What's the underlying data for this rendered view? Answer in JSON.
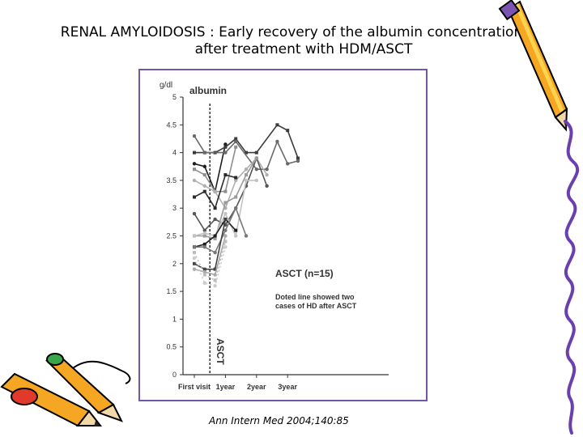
{
  "slide": {
    "title_line1": "RENAL AMYLOIDOSIS : Early recovery of the albumin concentration",
    "title_line2": "after treatment with HDM/ASCT",
    "citation": "Ann Intern Med 2004;140:85"
  },
  "chart_data": {
    "type": "line",
    "ylabel_unit": "g/dl",
    "panel_title": "albumin",
    "ylim": [
      0,
      5
    ],
    "yticks": [
      "0",
      "0.5",
      "1",
      "1.5",
      "2",
      "2.5",
      "3",
      "3.5",
      "4",
      "4.5",
      "5"
    ],
    "x_positions": [
      0,
      0.5,
      1,
      1.5,
      2,
      2.5,
      3,
      3.5,
      4,
      4.5,
      5
    ],
    "xtick_labels": [
      {
        "x": 0,
        "label": "First visit"
      },
      {
        "x": 1.5,
        "label": "1year"
      },
      {
        "x": 3,
        "label": "2year"
      },
      {
        "x": 4.5,
        "label": "3year"
      }
    ],
    "asct_marker_x": 0.75,
    "asct_label": "ASCT",
    "annotation_title": "ASCT (n=15)",
    "annotation_note_line1": "Doted line showed two",
    "annotation_note_line2": "cases of HD after ASCT",
    "grid": false,
    "legend": "none",
    "series_colors": [
      "#1e1e1e",
      "#3c3c3c",
      "#6a6a6a",
      "#8e8e8e",
      "#b0b0b0",
      "#2a2a2a",
      "#555555",
      "#9a9a9a",
      "#c2c2c2",
      "#1e1e1e",
      "#777777",
      "#444444",
      "#a8a8a8",
      "#bcbcbc",
      "#cccccc"
    ],
    "series": [
      {
        "dashed": false,
        "points": [
          [
            0,
            3.8
          ],
          [
            0.5,
            3.75
          ],
          [
            1,
            3.3
          ],
          [
            1.5,
            4.15
          ]
        ]
      },
      {
        "dashed": false,
        "points": [
          [
            0,
            4.0
          ],
          [
            0.5,
            4.0
          ],
          [
            1,
            4.0
          ],
          [
            1.5,
            4.1
          ],
          [
            2,
            4.25
          ],
          [
            2.5,
            4.0
          ],
          [
            3,
            4.0
          ],
          [
            4,
            4.5
          ],
          [
            4.5,
            4.4
          ],
          [
            5,
            3.9
          ]
        ]
      },
      {
        "dashed": false,
        "points": [
          [
            0,
            4.3
          ],
          [
            0.5,
            4.0
          ],
          [
            1.5,
            4.0
          ],
          [
            2,
            4.2
          ],
          [
            3,
            3.7
          ],
          [
            3.5,
            3.7
          ],
          [
            4,
            4.2
          ],
          [
            4.5,
            3.8
          ],
          [
            5,
            3.85
          ]
        ]
      },
      {
        "dashed": false,
        "points": [
          [
            0,
            3.7
          ],
          [
            0.5,
            3.6
          ],
          [
            1,
            3.3
          ],
          [
            1.5,
            3.3
          ],
          [
            2,
            4.1
          ]
        ]
      },
      {
        "dashed": false,
        "points": [
          [
            0,
            3.5
          ],
          [
            0.5,
            3.4
          ],
          [
            1,
            3.3
          ],
          [
            1.5,
            3.0
          ],
          [
            2,
            3.5
          ],
          [
            2.5,
            3.7
          ],
          [
            3,
            3.9
          ],
          [
            3.5,
            3.6
          ]
        ]
      },
      {
        "dashed": false,
        "points": [
          [
            0,
            3.2
          ],
          [
            0.5,
            3.3
          ],
          [
            1,
            3.0
          ],
          [
            1.5,
            3.6
          ],
          [
            2,
            3.55
          ]
        ]
      },
      {
        "dashed": false,
        "points": [
          [
            0,
            2.9
          ],
          [
            0.5,
            2.6
          ],
          [
            1,
            2.8
          ],
          [
            1.5,
            2.7
          ],
          [
            2,
            3.0
          ],
          [
            2.5,
            3.4
          ],
          [
            3,
            3.9
          ],
          [
            3.5,
            3.4
          ]
        ]
      },
      {
        "dashed": false,
        "points": [
          [
            0,
            2.5
          ],
          [
            0.5,
            2.5
          ],
          [
            1,
            2.45
          ],
          [
            1.5,
            3.1
          ],
          [
            2,
            3.2
          ],
          [
            2.5,
            3.6
          ],
          [
            3,
            3.9
          ]
        ]
      },
      {
        "dashed": false,
        "points": [
          [
            0,
            2.5
          ],
          [
            0.5,
            2.55
          ],
          [
            1,
            2.5
          ],
          [
            1.5,
            2.9
          ],
          [
            2,
            2.5
          ],
          [
            2.5,
            3.5
          ],
          [
            3,
            3.5
          ]
        ]
      },
      {
        "dashed": false,
        "points": [
          [
            0,
            2.3
          ],
          [
            0.5,
            2.35
          ],
          [
            1,
            2.5
          ],
          [
            1.5,
            2.8
          ],
          [
            2,
            2.6
          ]
        ]
      },
      {
        "dashed": false,
        "points": [
          [
            0,
            2.3
          ],
          [
            0.5,
            2.3
          ],
          [
            1,
            2.2
          ],
          [
            1.5,
            2.6
          ],
          [
            2,
            3.0
          ],
          [
            2.5,
            2.5
          ]
        ]
      },
      {
        "dashed": false,
        "points": [
          [
            0,
            2.0
          ],
          [
            0.5,
            1.9
          ],
          [
            1,
            1.9
          ],
          [
            1.5,
            2.8
          ]
        ]
      },
      {
        "dashed": false,
        "points": [
          [
            0,
            1.9
          ],
          [
            0.5,
            1.85
          ],
          [
            1,
            1.8
          ],
          [
            1.5,
            2.5
          ]
        ]
      },
      {
        "dashed": true,
        "points": [
          [
            0,
            2.2
          ],
          [
            0.5,
            1.8
          ],
          [
            1,
            1.7
          ],
          [
            1.5,
            2.4
          ]
        ]
      },
      {
        "dashed": true,
        "points": [
          [
            0,
            2.1
          ],
          [
            0.5,
            1.65
          ],
          [
            1,
            1.6
          ],
          [
            1.5,
            2.3
          ]
        ]
      }
    ]
  }
}
